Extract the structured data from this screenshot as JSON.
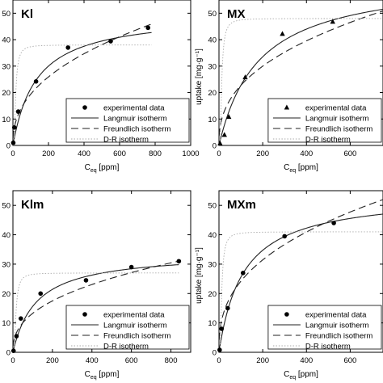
{
  "chart_data": [
    {
      "type": "scatter",
      "panel_label": "Kl",
      "xlabel": {
        "main": "C",
        "sub": "eq",
        "unit": "[ppm]"
      },
      "ylabel": "",
      "xlim": [
        0,
        1000
      ],
      "ylim": [
        0,
        55
      ],
      "xticks": [
        0,
        200,
        400,
        600,
        800,
        1000
      ],
      "yticks": [
        0,
        10,
        20,
        30,
        40,
        50
      ],
      "legend": {
        "position": "bottom-right",
        "entries": [
          "experimental data",
          "Langmuir isotherm",
          "Freundlich isotherm",
          "D-R isotherm"
        ]
      },
      "series": [
        {
          "name": "experimental data",
          "kind": "points",
          "marker": "circle",
          "x": [
            2,
            8,
            30,
            130,
            310,
            550,
            760
          ],
          "y": [
            1.0,
            6.8,
            12.8,
            24.2,
            37.0,
            39.4,
            44.5
          ]
        },
        {
          "name": "Langmuir isotherm",
          "kind": "langmuir",
          "qm": 50,
          "K": 0.0075,
          "xmax": 780
        },
        {
          "name": "Freundlich isotherm",
          "kind": "freundlich",
          "K": 2.8,
          "n": 0.42,
          "xmax": 780
        },
        {
          "name": "D-R isotherm",
          "kind": "dr",
          "qs": 38,
          "k": 0.00018,
          "xmax": 780
        }
      ]
    },
    {
      "type": "scatter",
      "panel_label": "MX",
      "xlabel": {
        "main": "C",
        "sub": "eq",
        "unit": "[ppm]"
      },
      "ylabel": "uptake [mg·g⁻¹]",
      "xlim": [
        0,
        750
      ],
      "ylim": [
        0,
        55
      ],
      "xticks": [
        0,
        200,
        400,
        600
      ],
      "yticks": [
        0,
        10,
        20,
        30,
        40,
        50
      ],
      "legend": {
        "position": "bottom-right",
        "entries": [
          "experimental data",
          "Langmuir isotherm",
          "Freundlich isotherm",
          "D-R isotherm"
        ]
      },
      "series": [
        {
          "name": "experimental data",
          "kind": "points",
          "marker": "triangle",
          "x": [
            5,
            25,
            45,
            120,
            290,
            520
          ],
          "y": [
            0.8,
            4.0,
            10.8,
            25.8,
            42.2,
            46.8
          ]
        },
        {
          "name": "Langmuir isotherm",
          "kind": "langmuir",
          "qm": 64,
          "K": 0.0055,
          "xmax": 750
        },
        {
          "name": "Freundlich isotherm",
          "kind": "freundlich",
          "K": 3.6,
          "n": 0.4,
          "xmax": 750
        },
        {
          "name": "D-R isotherm",
          "kind": "dr",
          "qs": 48,
          "k": 0.00012,
          "xmax": 750
        }
      ]
    },
    {
      "type": "scatter",
      "panel_label": "Klm",
      "xlabel": {
        "main": "C",
        "sub": "eq",
        "unit": "[ppm]"
      },
      "ylabel": "",
      "xlim": [
        0,
        900
      ],
      "ylim": [
        0,
        55
      ],
      "xticks": [
        0,
        200,
        400,
        600,
        800
      ],
      "yticks": [
        0,
        10,
        20,
        30,
        40,
        50
      ],
      "legend": {
        "position": "bottom-right",
        "entries": [
          "experimental data",
          "Langmuir isotherm",
          "Freundlich isotherm",
          "D-R isotherm"
        ]
      },
      "series": [
        {
          "name": "experimental data",
          "kind": "points",
          "marker": "circle",
          "x": [
            3,
            18,
            40,
            140,
            370,
            600,
            840
          ],
          "y": [
            0.5,
            5.5,
            11.5,
            20.0,
            24.5,
            29.0,
            31.0
          ]
        },
        {
          "name": "Langmuir isotherm",
          "kind": "langmuir",
          "qm": 34,
          "K": 0.0085,
          "xmax": 840
        },
        {
          "name": "Freundlich isotherm",
          "kind": "freundlich",
          "K": 2.1,
          "n": 0.4,
          "xmax": 840
        },
        {
          "name": "D-R isotherm",
          "kind": "dr",
          "qs": 27,
          "k": 0.00018,
          "xmax": 840
        }
      ]
    },
    {
      "type": "scatter",
      "panel_label": "MXm",
      "xlabel": {
        "main": "C",
        "sub": "eq",
        "unit": "[ppm]"
      },
      "ylabel": "uptake [mg·g⁻¹]",
      "xlim": [
        0,
        750
      ],
      "ylim": [
        0,
        55
      ],
      "xticks": [
        0,
        200,
        400,
        600
      ],
      "yticks": [
        0,
        10,
        20,
        30,
        40,
        50
      ],
      "legend": {
        "position": "bottom-right",
        "entries": [
          "experimental data",
          "Langmuir isotherm",
          "Freundlich isotherm",
          "D-R isotherm"
        ]
      },
      "series": [
        {
          "name": "experimental data",
          "kind": "points",
          "marker": "circle",
          "x": [
            3,
            12,
            40,
            110,
            300,
            525
          ],
          "y": [
            0.8,
            8.0,
            15.0,
            27.0,
            39.5,
            44.0
          ]
        },
        {
          "name": "Langmuir isotherm",
          "kind": "langmuir",
          "qm": 54,
          "K": 0.009,
          "xmax": 750
        },
        {
          "name": "Freundlich isotherm",
          "kind": "freundlich",
          "K": 4.2,
          "n": 0.38,
          "xmax": 750
        },
        {
          "name": "D-R isotherm",
          "kind": "dr",
          "qs": 41,
          "k": 0.00012,
          "xmax": 750
        }
      ]
    }
  ]
}
